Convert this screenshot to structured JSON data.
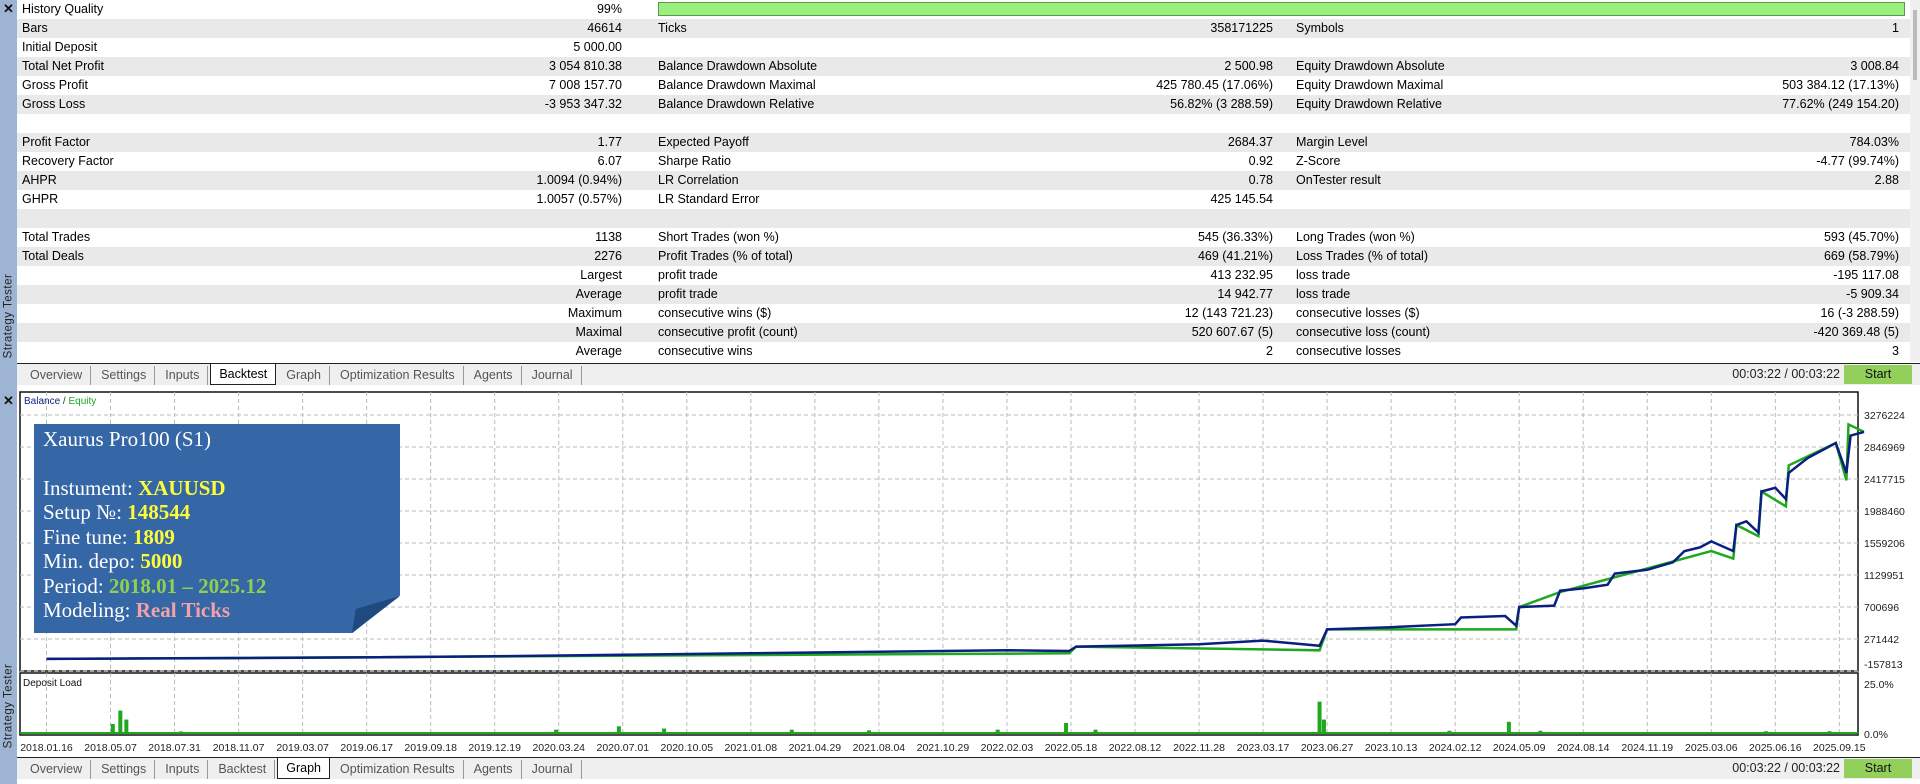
{
  "window": {
    "title": "Strategy Tester"
  },
  "stats": {
    "history_quality_fill": 99,
    "rows": [
      [
        "History Quality",
        "99%",
        "",
        "",
        "",
        ""
      ],
      [
        "Bars",
        "46614",
        "Ticks",
        "358171225",
        "Symbols",
        "1"
      ],
      [
        "Initial Deposit",
        "5 000.00",
        "",
        "",
        "",
        ""
      ],
      [
        "Total Net Profit",
        "3 054 810.38",
        "Balance Drawdown Absolute",
        "2 500.98",
        "Equity Drawdown Absolute",
        "3 008.84"
      ],
      [
        "Gross Profit",
        "7 008 157.70",
        "Balance Drawdown Maximal",
        "425 780.45 (17.06%)",
        "Equity Drawdown Maximal",
        "503 384.12 (17.13%)"
      ],
      [
        "Gross Loss",
        "-3 953 347.32",
        "Balance Drawdown Relative",
        "56.82% (3 288.59)",
        "Equity Drawdown Relative",
        "77.62% (249 154.20)"
      ],
      [
        "",
        "",
        "",
        "",
        "",
        ""
      ],
      [
        "Profit Factor",
        "1.77",
        "Expected Payoff",
        "2684.37",
        "Margin Level",
        "784.03%"
      ],
      [
        "Recovery Factor",
        "6.07",
        "Sharpe Ratio",
        "0.92",
        "Z-Score",
        "-4.77 (99.74%)"
      ],
      [
        "AHPR",
        "1.0094 (0.94%)",
        "LR Correlation",
        "0.78",
        "OnTester result",
        "2.88"
      ],
      [
        "GHPR",
        "1.0057 (0.57%)",
        "LR Standard Error",
        "425 145.54",
        "",
        ""
      ],
      [
        "",
        "",
        "",
        "",
        "",
        ""
      ],
      [
        "Total Trades",
        "1138",
        "Short Trades (won %)",
        "545 (36.33%)",
        "Long Trades (won %)",
        "593 (45.70%)"
      ],
      [
        "Total Deals",
        "2276",
        "Profit Trades (% of total)",
        "469 (41.21%)",
        "Loss Trades (% of total)",
        "669 (58.79%)"
      ],
      [
        "",
        "Largest",
        "profit trade",
        "413 232.95",
        "loss trade",
        "-195 117.08"
      ],
      [
        "",
        "Average",
        "profit trade",
        "14 942.77",
        "loss trade",
        "-5 909.34"
      ],
      [
        "",
        "Maximum",
        "consecutive wins ($)",
        "12 (143 721.23)",
        "consecutive losses ($)",
        "16 (-3 288.59)"
      ],
      [
        "",
        "Maximal",
        "consecutive profit (count)",
        "520 607.67 (5)",
        "consecutive loss (count)",
        "-420 369.48 (5)"
      ],
      [
        "",
        "Average",
        "consecutive wins",
        "2",
        "consecutive losses",
        "3"
      ]
    ]
  },
  "tabs": [
    "Overview",
    "Settings",
    "Inputs",
    "Backtest",
    "Graph",
    "Optimization Results",
    "Agents",
    "Journal"
  ],
  "top_tabbar": {
    "active": "Backtest",
    "timer": "00:03:22 / 00:03:22",
    "start_label": "Start"
  },
  "bottom_tabbar": {
    "active": "Graph",
    "timer": "00:03:22 / 00:03:22",
    "start_label": "Start"
  },
  "info_box": {
    "title": "Xaurus Pro100 (S1)",
    "instrument_label": "Instument:",
    "instrument": "XAUUSD",
    "setup_label": "Setup №:",
    "setup": "148544",
    "fine_tune_label": "Fine tune:",
    "fine_tune": "1809",
    "min_depo_label": "Min. depo:",
    "min_depo": "5000",
    "period_label": "Period:",
    "period": "2018.01 – 2025.12",
    "modeling_label": "Modeling:",
    "modeling": "Real Ticks",
    "colors": {
      "background": "#3566a5",
      "highlight": "#fdfd3c",
      "period": "#8fd14f",
      "modeling": "#f2a2a6"
    }
  },
  "chart_data": [
    {
      "type": "line",
      "legend": {
        "balance": "Balance",
        "separator": " / ",
        "equity": "Equity"
      },
      "legend_placement": "top-left",
      "grid": true,
      "colors": {
        "balance": "#0a1f80",
        "equity": "#1fa81f"
      },
      "y_ticks": [
        "3276224",
        "2846969",
        "2417715",
        "1988460",
        "1559206",
        "1129951",
        "700696",
        "271442",
        "-157813"
      ],
      "ylim": [
        -157813,
        3276224
      ],
      "x_ticks": [
        "2018.01.16",
        "2018.05.07",
        "2018.07.31",
        "2018.11.07",
        "2019.03.07",
        "2019.06.17",
        "2019.09.18",
        "2019.12.19",
        "2020.03.24",
        "2020.07.01",
        "2020.10.05",
        "2021.01.08",
        "2021.04.29",
        "2021.08.04",
        "2021.10.29",
        "2022.02.03",
        "2022.05.18",
        "2022.08.12",
        "2022.11.28",
        "2023.03.17",
        "2023.06.27",
        "2023.10.13",
        "2024.02.12",
        "2024.05.09",
        "2024.08.14",
        "2024.11.19",
        "2025.03.06",
        "2025.06.16",
        "2025.09.15"
      ],
      "series": [
        {
          "name": "Balance",
          "points": [
            [
              "2018.01.16",
              5000
            ],
            [
              "2018.05.07",
              8000
            ],
            [
              "2018.11.07",
              15000
            ],
            [
              "2019.06.17",
              25000
            ],
            [
              "2019.12.19",
              40000
            ],
            [
              "2020.07.01",
              60000
            ],
            [
              "2021.01.08",
              80000
            ],
            [
              "2021.08.04",
              100000
            ],
            [
              "2022.02.03",
              120000
            ],
            [
              "2022.05.15",
              110000
            ],
            [
              "2022.05.25",
              170000
            ],
            [
              "2022.11.28",
              200000
            ],
            [
              "2023.03.17",
              250000
            ],
            [
              "2023.06.15",
              180000
            ],
            [
              "2023.06.27",
              400000
            ],
            [
              "2023.10.13",
              430000
            ],
            [
              "2024.02.12",
              470000
            ],
            [
              "2024.02.20",
              560000
            ],
            [
              "2024.04.20",
              580000
            ],
            [
              "2024.05.05",
              450000
            ],
            [
              "2024.05.09",
              700000
            ],
            [
              "2024.07.01",
              720000
            ],
            [
              "2024.07.10",
              920000
            ],
            [
              "2024.08.14",
              950000
            ],
            [
              "2024.09.20",
              1000000
            ],
            [
              "2024.10.01",
              1150000
            ],
            [
              "2024.11.19",
              1200000
            ],
            [
              "2025.01.01",
              1300000
            ],
            [
              "2025.01.20",
              1450000
            ],
            [
              "2025.02.15",
              1500000
            ],
            [
              "2025.03.06",
              1580000
            ],
            [
              "2025.04.10",
              1450000
            ],
            [
              "2025.04.15",
              1800000
            ],
            [
              "2025.05.01",
              1850000
            ],
            [
              "2025.05.20",
              1700000
            ],
            [
              "2025.05.25",
              2250000
            ],
            [
              "2025.06.16",
              2300000
            ],
            [
              "2025.07.01",
              2150000
            ],
            [
              "2025.07.05",
              2500000
            ],
            [
              "2025.08.01",
              2700000
            ],
            [
              "2025.09.10",
              2900000
            ],
            [
              "2025.09.25",
              2500000
            ],
            [
              "2025.10.01",
              3000000
            ],
            [
              "2025.10.20",
              3050000
            ]
          ]
        },
        {
          "name": "Equity",
          "points": [
            [
              "2018.01.16",
              5000
            ],
            [
              "2022.05.15",
              80000
            ],
            [
              "2022.05.25",
              170000
            ],
            [
              "2023.06.15",
              120000
            ],
            [
              "2023.06.27",
              400000
            ],
            [
              "2024.05.05",
              400000
            ],
            [
              "2024.05.09",
              700000
            ],
            [
              "2024.07.10",
              900000
            ],
            [
              "2025.03.06",
              1450000
            ],
            [
              "2025.04.10",
              1350000
            ],
            [
              "2025.04.15",
              1800000
            ],
            [
              "2025.05.20",
              1650000
            ],
            [
              "2025.05.25",
              2250000
            ],
            [
              "2025.07.01",
              2050000
            ],
            [
              "2025.07.05",
              2600000
            ],
            [
              "2025.09.10",
              2900000
            ],
            [
              "2025.09.25",
              2400000
            ],
            [
              "2025.09.28",
              3150000
            ],
            [
              "2025.10.20",
              3050000
            ]
          ]
        }
      ]
    },
    {
      "type": "bar",
      "title": "Deposit Load",
      "y_ticks": [
        "25.0%",
        "0.0%"
      ],
      "ylim": [
        0,
        25
      ],
      "color": "#1fa81f",
      "values": [
        [
          "2018.05.10",
          4
        ],
        [
          "2018.05.20",
          10
        ],
        [
          "2018.05.28",
          6
        ],
        [
          "2018.08.10",
          0.7
        ],
        [
          "2020.03.20",
          1.5
        ],
        [
          "2020.06.25",
          3
        ],
        [
          "2020.09.01",
          2
        ],
        [
          "2021.03.20",
          1.5
        ],
        [
          "2021.07.20",
          1.2
        ],
        [
          "2022.01.20",
          1.5
        ],
        [
          "2022.05.10",
          4.5
        ],
        [
          "2022.06.20",
          1.5
        ],
        [
          "2023.06.15",
          14
        ],
        [
          "2023.06.22",
          6
        ],
        [
          "2024.02.01",
          1
        ],
        [
          "2024.04.25",
          5
        ],
        [
          "2024.06.10",
          1
        ],
        [
          "2025.06.01",
          0.8
        ],
        [
          "2025.09.01",
          0.8
        ]
      ]
    }
  ]
}
